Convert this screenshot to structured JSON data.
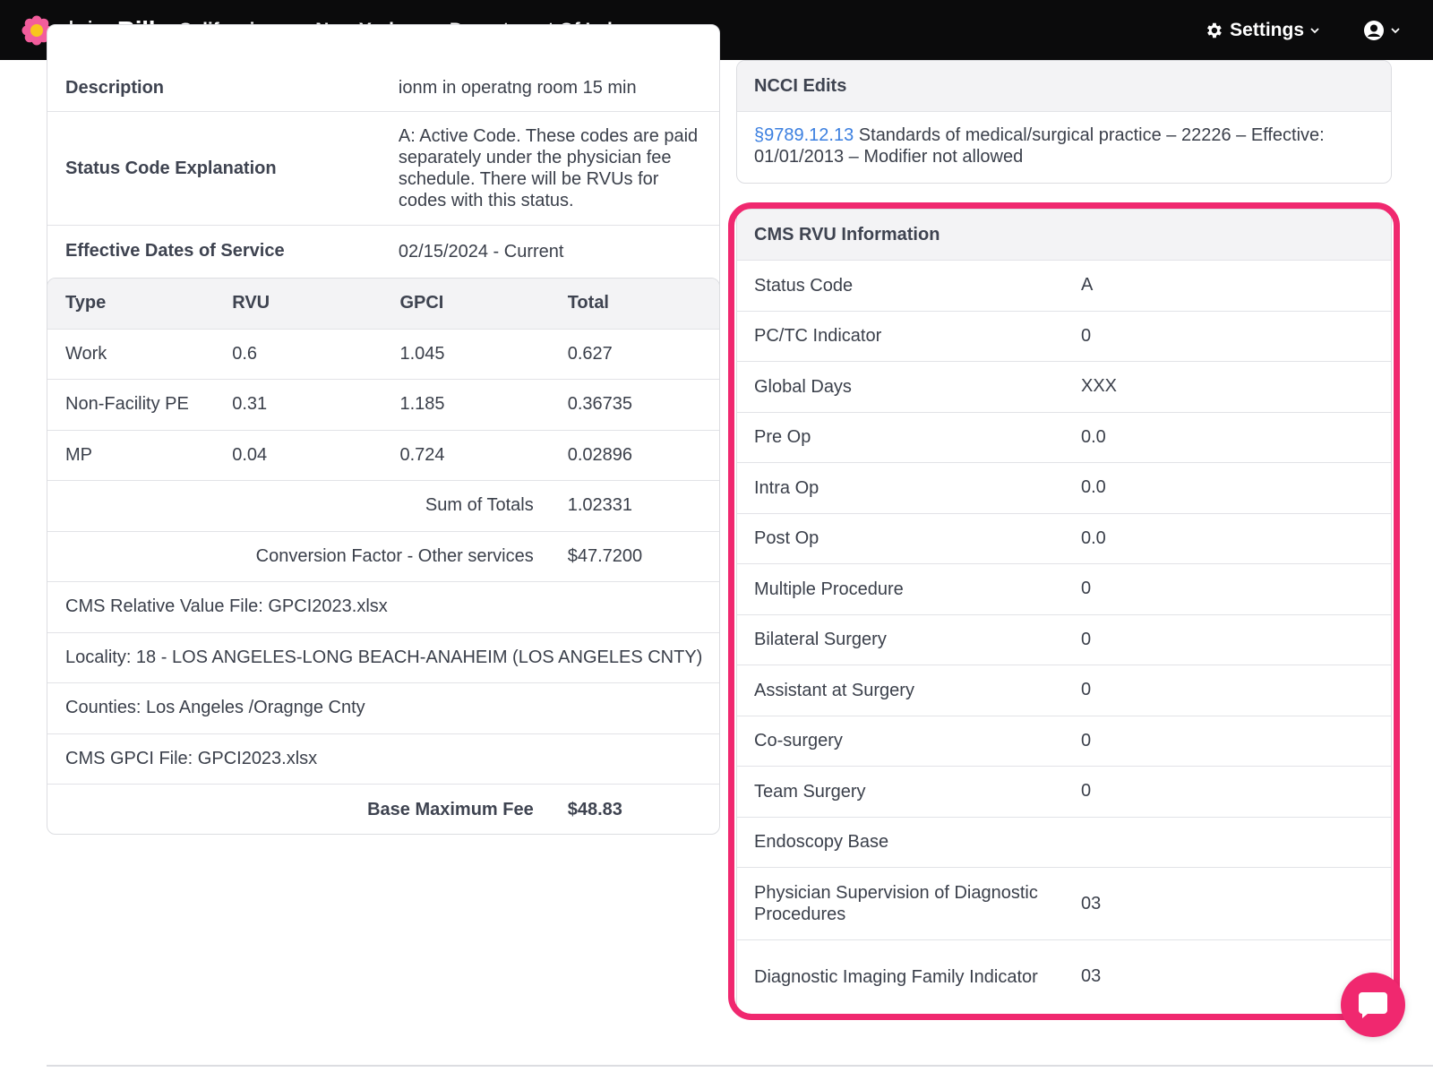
{
  "nav": {
    "brand_light": "daisy",
    "brand_bold": "Bill",
    "items": [
      "California",
      "New York",
      "Department Of Labor"
    ],
    "settings_label": "Settings"
  },
  "desc_card": {
    "rows": [
      {
        "label": "Description",
        "value": "ionm in operatng room 15 min"
      },
      {
        "label": "Status Code Explanation",
        "value": "A: Active Code. These codes are paid separately under the physician fee schedule. There will be RVUs for codes with this status."
      },
      {
        "label": "Effective Dates of Service",
        "value": "02/15/2024 - Current"
      }
    ]
  },
  "rvu_table": {
    "headers": [
      "Type",
      "RVU",
      "GPCI",
      "Total"
    ],
    "rows": [
      [
        "Work",
        "0.6",
        "1.045",
        "0.627"
      ],
      [
        "Non-Facility PE",
        "0.31",
        "1.185",
        "0.36735"
      ],
      [
        "MP",
        "0.04",
        "0.724",
        "0.02896"
      ]
    ],
    "sum_label": "Sum of Totals",
    "sum_value": "1.02331",
    "cf_label": "Conversion Factor - Other services",
    "cf_value": "$47.7200",
    "info": [
      "CMS Relative Value File: GPCI2023.xlsx",
      "Locality: 18 - LOS ANGELES-LONG BEACH-ANAHEIM (LOS ANGELES CNTY)",
      "Counties: Los Angeles /Oragnge Cnty",
      "CMS GPCI File: GPCI2023.xlsx"
    ],
    "fee_label": "Base Maximum Fee",
    "fee_value": "$48.83"
  },
  "ncci": {
    "title": "NCCI Edits",
    "link": "§9789.12.13",
    "text": " Standards of medical/surgical practice – 22226 – Effective: 01/01/2013 – Modifier not allowed"
  },
  "cms": {
    "title": "CMS RVU Information",
    "rows": [
      {
        "label": "Status Code",
        "value": "A"
      },
      {
        "label": "PC/TC Indicator",
        "value": "0"
      },
      {
        "label": "Global Days",
        "value": "XXX"
      },
      {
        "label": "Pre Op",
        "value": "0.0"
      },
      {
        "label": "Intra Op",
        "value": "0.0"
      },
      {
        "label": "Post Op",
        "value": "0.0"
      },
      {
        "label": "Multiple Procedure",
        "value": "0"
      },
      {
        "label": "Bilateral Surgery",
        "value": "0"
      },
      {
        "label": "Assistant at Surgery",
        "value": "0"
      },
      {
        "label": "Co-surgery",
        "value": "0"
      },
      {
        "label": "Team Surgery",
        "value": "0"
      },
      {
        "label": "Endoscopy Base",
        "value": ""
      },
      {
        "label": "Physician Supervision of Diagnostic Procedures",
        "value": "03"
      },
      {
        "label": "Diagnostic Imaging Family Indicator",
        "value": "03"
      }
    ]
  },
  "colors": {
    "highlight": "#f0286f",
    "link": "#3b7fe0",
    "nav_bg": "#0b0b0c"
  }
}
